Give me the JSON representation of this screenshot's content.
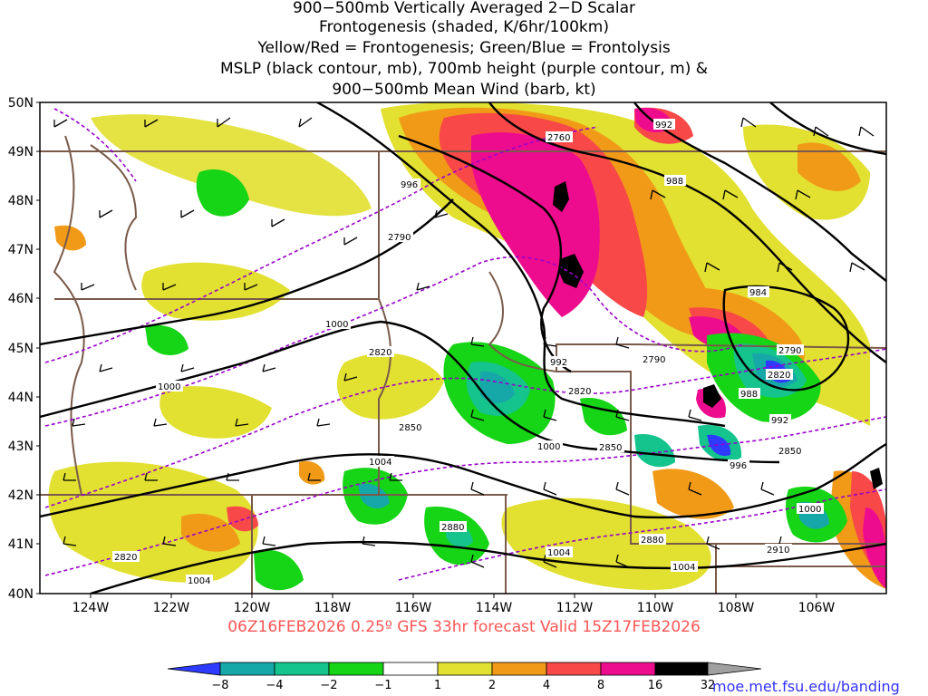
{
  "title": {
    "lines": [
      "900−500mb Vertically Averaged 2−D Scalar",
      "Frontogenesis (shaded, K/6hr/100km)",
      "Yellow/Red = Frontogenesis;  Green/Blue = Frontolysis",
      "MSLP (black contour, mb), 700mb height (purple contour, m) &",
      "900−500mb Mean Wind (barb, kt)"
    ]
  },
  "map": {
    "lat_labels": [
      "50N",
      "49N",
      "48N",
      "47N",
      "46N",
      "45N",
      "44N",
      "43N",
      "42N",
      "41N",
      "40N"
    ],
    "lon_labels": [
      "124W",
      "122W",
      "120W",
      "118W",
      "116W",
      "114W",
      "112W",
      "110W",
      "108W",
      "106W"
    ],
    "lat_range": [
      40,
      50
    ],
    "lon_range": [
      -125,
      -105
    ],
    "colors": {
      "border": "#7a5a4a",
      "mslp": "#000000",
      "height": "#9900cc",
      "barb": "#000000"
    }
  },
  "mslp_labels": [
    "992",
    "988",
    "996",
    "984",
    "1000",
    "992",
    "988",
    "992",
    "1000",
    "1000",
    "996",
    "1004",
    "1000",
    "1004",
    "1004",
    "1004"
  ],
  "height_labels": [
    "2760",
    "2790",
    "2820",
    "2790",
    "2820",
    "2820",
    "2790",
    "2850",
    "2850",
    "2850",
    "2880",
    "2880",
    "2910",
    "2820"
  ],
  "colorbar": {
    "labels": [
      "−8",
      "−4",
      "−2",
      "−1",
      "1",
      "2",
      "4",
      "8",
      "16",
      "32"
    ],
    "colors": [
      "#2e3bff",
      "#16a8a8",
      "#14c48c",
      "#2ad85a",
      "#16d416",
      "#ffffff",
      "#e2e030",
      "#f09a18",
      "#f84848",
      "#ee0c8e",
      "#000000",
      "#a0a0a0"
    ]
  },
  "valid_time": "06Z16FEB2026 0.25º GFS 33hr forecast Valid 15Z17FEB2026",
  "credit": "moe.met.fsu.edu/banding"
}
